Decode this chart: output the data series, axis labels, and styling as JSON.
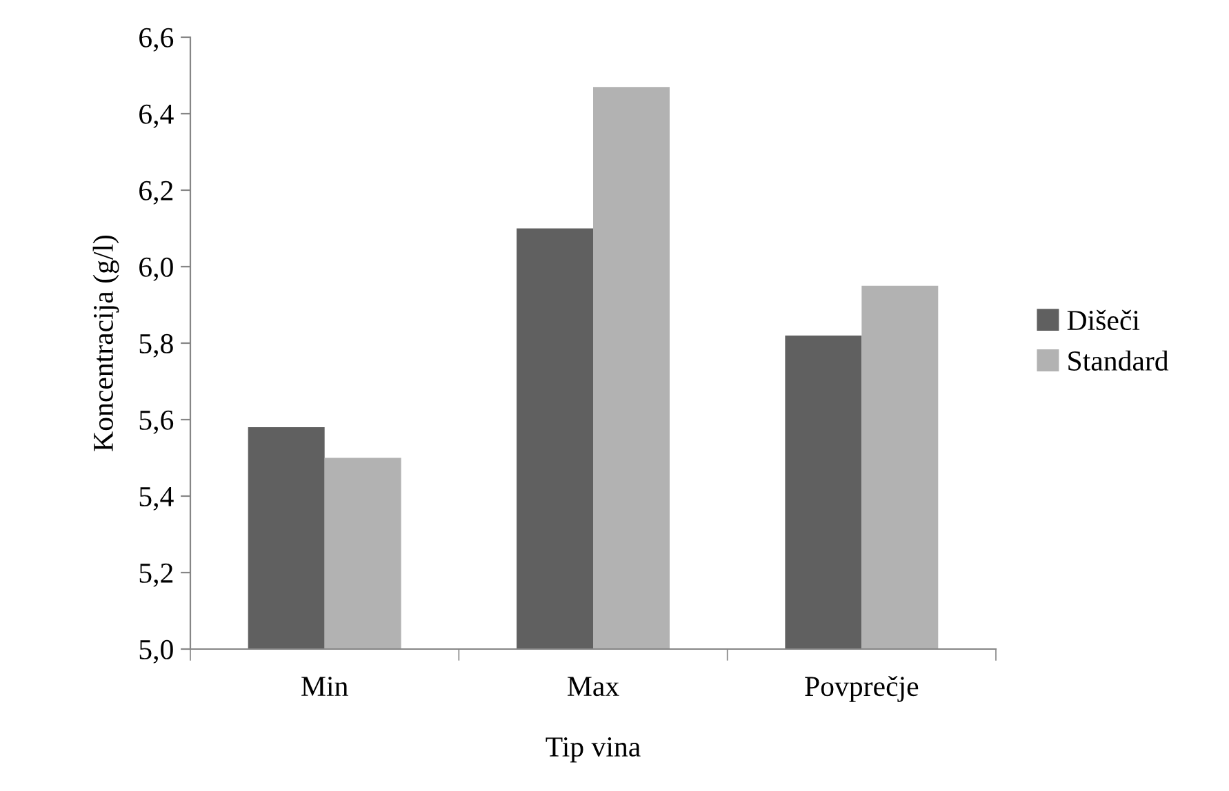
{
  "chart_data": {
    "type": "bar",
    "xlabel": "Tip vina",
    "ylabel": "Koncentracija (g/l)",
    "categories": [
      "Min",
      "Max",
      "Povprečje"
    ],
    "series": [
      {
        "name": "Dišeči",
        "color": "#606060",
        "values": [
          5.58,
          6.1,
          5.82
        ]
      },
      {
        "name": "Standard",
        "color": "#b2b2b2",
        "values": [
          5.5,
          6.47,
          5.95
        ]
      }
    ],
    "ylim": [
      5.0,
      6.6
    ],
    "yticks": [
      {
        "value": 5.0,
        "label": "5,0"
      },
      {
        "value": 5.2,
        "label": "5,2"
      },
      {
        "value": 5.4,
        "label": "5,4"
      },
      {
        "value": 5.6,
        "label": "5,6"
      },
      {
        "value": 5.8,
        "label": "5,8"
      },
      {
        "value": 6.0,
        "label": "6,0"
      },
      {
        "value": 6.2,
        "label": "6,2"
      },
      {
        "value": 6.4,
        "label": "6,4"
      },
      {
        "value": 6.6,
        "label": "6,6"
      }
    ],
    "grid": false,
    "legend": "right"
  }
}
